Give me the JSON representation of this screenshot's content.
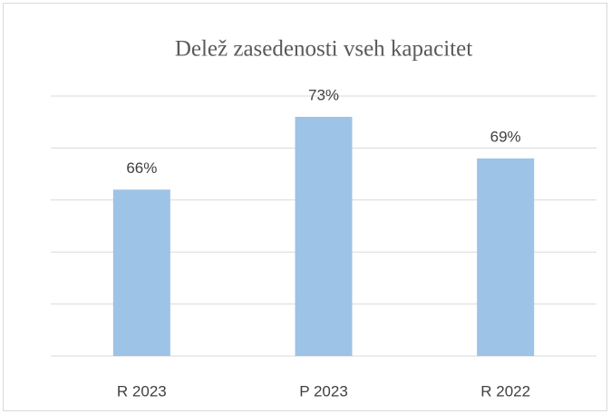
{
  "chart_data": {
    "type": "bar",
    "title": "Delež zasedenosti vseh kapacitet",
    "categories": [
      "R 2023",
      "P 2023",
      "R 2022"
    ],
    "values": [
      66,
      73,
      69
    ],
    "value_labels": [
      "66%",
      "73%",
      "69%"
    ],
    "color": "#9dc3e6",
    "ylim": [
      50,
      75
    ],
    "yticks": [
      50,
      55,
      60,
      65,
      70,
      75
    ],
    "grid": true
  }
}
